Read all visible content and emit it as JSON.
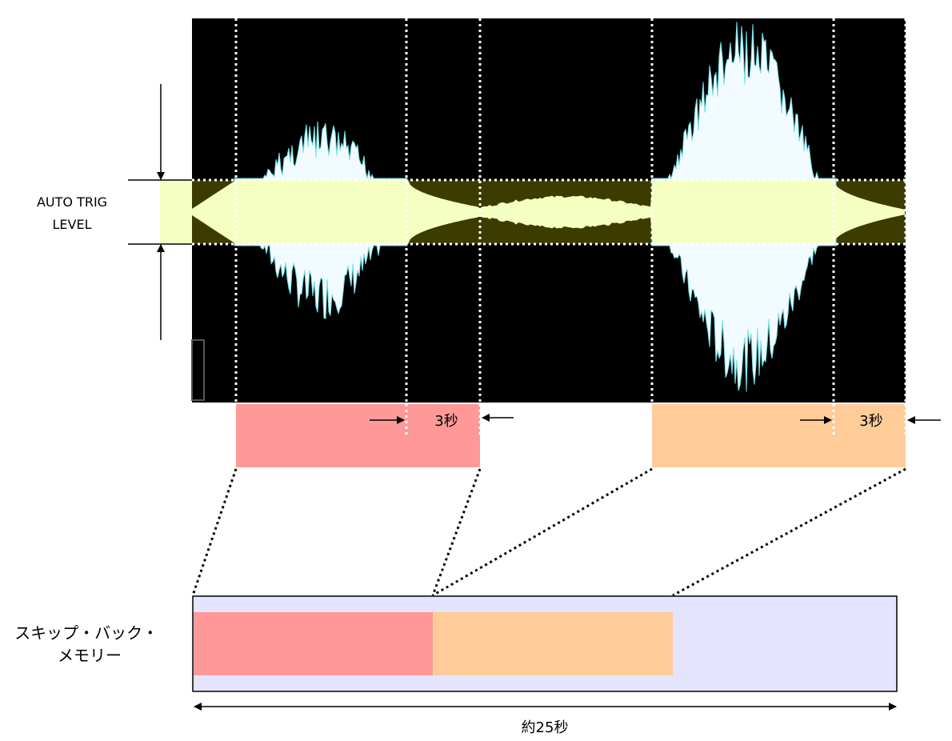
{
  "labels": {
    "trig_line1": "AUTO TRIG",
    "trig_line2": "LEVEL",
    "seg1_tail": "3秒",
    "seg2_tail": "3秒",
    "memory_line1": "スキップ・バック・",
    "memory_line2": "メモリー",
    "duration": "約25秒"
  },
  "colors": {
    "waveform_bg": "#000000",
    "waveform": "#f2fbff",
    "waveform_edge": "#6fe0e8",
    "trig_band": "#f6ffc2",
    "trig_dark": "#3c3c00",
    "segment1": "#ff9999",
    "segment2": "#ffcc99",
    "memory_bg": "#e4e4ff"
  }
}
